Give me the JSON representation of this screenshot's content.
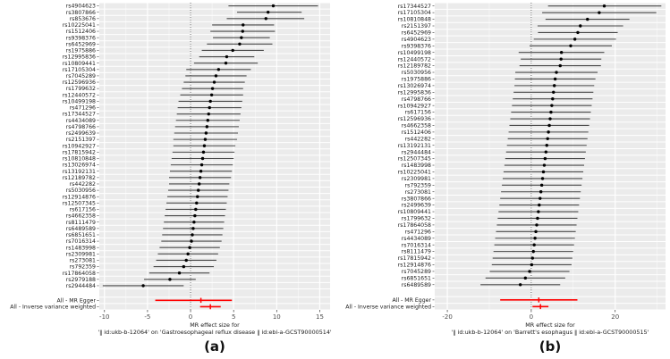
{
  "figure": {
    "caption_a": "(a)",
    "caption_b": "(b)",
    "colors": {
      "panel_bg": "#ebebeb",
      "grid_major": "#ffffff",
      "grid_minor": "#f7f7f7",
      "zero_line": "#222222",
      "ci_line": "#4a4a4a",
      "point": "#000000",
      "summary": "#ff0000",
      "tick": "#333333",
      "tick_label": "#4d4d4d",
      "axis_label": "#1a1a1a",
      "snp_label": "#1a1a1a"
    }
  },
  "chart_data": [
    {
      "type": "forest",
      "panel": "a",
      "xlabel_line1": "MR effect size for",
      "xlabel_line2": "'‖ id:ukb-b-12064' on 'Gastroesophageal reflux disease ‖ id:ebi-a-GCST90000514'",
      "xlim": [
        -10.6,
        16.2
      ],
      "xticks": [
        -10,
        -5,
        0,
        5,
        10,
        15
      ],
      "legend_position": "none",
      "grid": true,
      "rows": [
        {
          "label": "rs4904623",
          "est": 9.6,
          "lo": 4.4,
          "hi": 14.8
        },
        {
          "label": "rs3807866",
          "est": 9.0,
          "lo": 5.4,
          "hi": 12.9
        },
        {
          "label": "rs853676",
          "est": 8.75,
          "lo": 4.2,
          "hi": 13.2
        },
        {
          "label": "rs10225041",
          "est": 6.1,
          "lo": 2.5,
          "hi": 9.7
        },
        {
          "label": "rs1512406",
          "est": 6.05,
          "lo": 2.3,
          "hi": 9.8
        },
        {
          "label": "rs9398376",
          "est": 5.9,
          "lo": 2.6,
          "hi": 9.2
        },
        {
          "label": "rs6452969",
          "est": 5.7,
          "lo": 1.9,
          "hi": 9.5
        },
        {
          "label": "rs1975886",
          "est": 4.9,
          "lo": 1.3,
          "hi": 8.5
        },
        {
          "label": "rs12995836",
          "est": 4.2,
          "lo": 1.0,
          "hi": 7.4
        },
        {
          "label": "rs10809441",
          "est": 4.1,
          "lo": 0.4,
          "hi": 7.8
        },
        {
          "label": "rs17105304",
          "est": 3.25,
          "lo": -0.5,
          "hi": 7.0
        },
        {
          "label": "rs7045289",
          "est": 2.95,
          "lo": -0.6,
          "hi": 6.5
        },
        {
          "label": "rs12596936",
          "est": 2.75,
          "lo": -0.8,
          "hi": 6.3
        },
        {
          "label": "rs1799632",
          "est": 2.55,
          "lo": -1.0,
          "hi": 6.1
        },
        {
          "label": "rs12440572",
          "est": 2.45,
          "lo": -1.2,
          "hi": 6.1
        },
        {
          "label": "rs10499198",
          "est": 2.3,
          "lo": -1.4,
          "hi": 6.0
        },
        {
          "label": "rs471296",
          "est": 2.2,
          "lo": -1.5,
          "hi": 5.9
        },
        {
          "label": "rs17344527",
          "est": 2.1,
          "lo": -1.6,
          "hi": 5.8
        },
        {
          "label": "rs4434089",
          "est": 2.0,
          "lo": -1.7,
          "hi": 5.7
        },
        {
          "label": "rs4798766",
          "est": 1.9,
          "lo": -1.8,
          "hi": 5.6
        },
        {
          "label": "rs2499639",
          "est": 1.8,
          "lo": -1.9,
          "hi": 5.5
        },
        {
          "label": "rs2151397",
          "est": 1.7,
          "lo": -2.0,
          "hi": 5.4
        },
        {
          "label": "rs10942927",
          "est": 1.6,
          "lo": -2.0,
          "hi": 5.2
        },
        {
          "label": "rs17815942",
          "est": 1.5,
          "lo": -2.1,
          "hi": 5.1
        },
        {
          "label": "rs10810848",
          "est": 1.4,
          "lo": -2.2,
          "hi": 5.0
        },
        {
          "label": "rs13026974",
          "est": 1.3,
          "lo": -2.3,
          "hi": 4.9
        },
        {
          "label": "rs13192131",
          "est": 1.2,
          "lo": -2.4,
          "hi": 4.8
        },
        {
          "label": "rs12189782",
          "est": 1.1,
          "lo": -2.5,
          "hi": 4.7
        },
        {
          "label": "rs442282",
          "est": 1.0,
          "lo": -2.5,
          "hi": 4.5
        },
        {
          "label": "rs5030956",
          "est": 0.9,
          "lo": -2.6,
          "hi": 4.4
        },
        {
          "label": "rs12914876",
          "est": 0.8,
          "lo": -2.7,
          "hi": 4.3
        },
        {
          "label": "rs12507345",
          "est": 0.7,
          "lo": -2.8,
          "hi": 4.2
        },
        {
          "label": "rs617156",
          "est": 0.6,
          "lo": -2.9,
          "hi": 4.1
        },
        {
          "label": "rs4662358",
          "est": 0.5,
          "lo": -3.0,
          "hi": 4.0
        },
        {
          "label": "rs8111479",
          "est": 0.4,
          "lo": -3.1,
          "hi": 3.9
        },
        {
          "label": "rs6489589",
          "est": 0.3,
          "lo": -3.2,
          "hi": 3.8
        },
        {
          "label": "rs6851651",
          "est": 0.2,
          "lo": -3.3,
          "hi": 3.7
        },
        {
          "label": "rs7016314",
          "est": 0.1,
          "lo": -3.4,
          "hi": 3.6
        },
        {
          "label": "rs1483998",
          "est": -0.1,
          "lo": -3.6,
          "hi": 3.4
        },
        {
          "label": "rs2309981",
          "est": -0.3,
          "lo": -3.8,
          "hi": 3.2
        },
        {
          "label": "rs273081",
          "est": -0.5,
          "lo": -4.0,
          "hi": 3.0
        },
        {
          "label": "rs792359",
          "est": -0.8,
          "lo": -4.3,
          "hi": 2.7
        },
        {
          "label": "rs17864058",
          "est": -1.3,
          "lo": -4.8,
          "hi": 2.2
        },
        {
          "label": "rs2979188",
          "est": -2.4,
          "lo": -5.4,
          "hi": 0.6
        },
        {
          "label": "rs2944484",
          "est": -5.5,
          "lo": -10.2,
          "hi": -0.8
        }
      ],
      "summary_rows": [
        {
          "label": "All - MR Egger",
          "est": 1.2,
          "lo": -4.1,
          "hi": 4.8
        },
        {
          "label": "All - Inverse variance weighted",
          "est": 2.3,
          "lo": 1.1,
          "hi": 3.5
        }
      ]
    },
    {
      "type": "forest",
      "panel": "b",
      "xlabel_line1": "MR effect size for",
      "xlabel_line2": "'‖ id:ukb-b-12064' on 'Barrett's esophagus ‖ id:ebi-a-GCST90000515'",
      "xlim": [
        -23,
        32
      ],
      "xticks": [
        -20,
        0,
        20
      ],
      "legend_position": "none",
      "grid": true,
      "rows": [
        {
          "label": "rs17344527",
          "est": 17.4,
          "lo": 4.0,
          "hi": 31.0
        },
        {
          "label": "rs17105304",
          "est": 16.2,
          "lo": 2.6,
          "hi": 29.8
        },
        {
          "label": "rs10810848",
          "est": 13.4,
          "lo": 3.4,
          "hi": 23.4
        },
        {
          "label": "rs2151397",
          "est": 11.7,
          "lo": 1.5,
          "hi": 21.9
        },
        {
          "label": "rs6452969",
          "est": 11.1,
          "lo": 1.6,
          "hi": 20.6
        },
        {
          "label": "rs4904623",
          "est": 10.4,
          "lo": 0.6,
          "hi": 20.2
        },
        {
          "label": "rs9398376",
          "est": 9.4,
          "lo": -0.4,
          "hi": 19.2
        },
        {
          "label": "rs10499198",
          "est": 7.2,
          "lo": -3.0,
          "hi": 17.4
        },
        {
          "label": "rs12440572",
          "est": 7.1,
          "lo": -2.5,
          "hi": 16.7
        },
        {
          "label": "rs12189782",
          "est": 6.9,
          "lo": -2.8,
          "hi": 16.6
        },
        {
          "label": "rs5030956",
          "est": 6.0,
          "lo": -3.8,
          "hi": 15.8
        },
        {
          "label": "rs1975886",
          "est": 5.7,
          "lo": -3.9,
          "hi": 15.3
        },
        {
          "label": "rs13026974",
          "est": 5.5,
          "lo": -4.0,
          "hi": 15.0
        },
        {
          "label": "rs12995836",
          "est": 5.3,
          "lo": -4.2,
          "hi": 14.8
        },
        {
          "label": "rs4798766",
          "est": 5.1,
          "lo": -4.4,
          "hi": 14.6
        },
        {
          "label": "rs10942927",
          "est": 4.9,
          "lo": -4.6,
          "hi": 14.4
        },
        {
          "label": "rs617156",
          "est": 4.7,
          "lo": -4.8,
          "hi": 14.2
        },
        {
          "label": "rs12596936",
          "est": 4.5,
          "lo": -5.0,
          "hi": 14.0
        },
        {
          "label": "rs4662358",
          "est": 4.3,
          "lo": -5.2,
          "hi": 13.8
        },
        {
          "label": "rs1512406",
          "est": 4.1,
          "lo": -5.4,
          "hi": 13.6
        },
        {
          "label": "rs442282",
          "est": 3.9,
          "lo": -5.6,
          "hi": 13.4
        },
        {
          "label": "rs13192131",
          "est": 3.7,
          "lo": -5.8,
          "hi": 13.2
        },
        {
          "label": "rs2944484",
          "est": 3.5,
          "lo": -6.0,
          "hi": 13.0
        },
        {
          "label": "rs12507345",
          "est": 3.3,
          "lo": -6.2,
          "hi": 12.8
        },
        {
          "label": "rs1483998",
          "est": 3.1,
          "lo": -6.4,
          "hi": 12.6
        },
        {
          "label": "rs10225041",
          "est": 2.9,
          "lo": -6.6,
          "hi": 12.4
        },
        {
          "label": "rs2309981",
          "est": 2.7,
          "lo": -6.8,
          "hi": 12.2
        },
        {
          "label": "rs792359",
          "est": 2.5,
          "lo": -7.0,
          "hi": 12.0
        },
        {
          "label": "rs273081",
          "est": 2.3,
          "lo": -7.2,
          "hi": 11.8
        },
        {
          "label": "rs3807866",
          "est": 2.1,
          "lo": -7.4,
          "hi": 11.6
        },
        {
          "label": "rs2499639",
          "est": 1.9,
          "lo": -7.6,
          "hi": 11.4
        },
        {
          "label": "rs10809441",
          "est": 1.7,
          "lo": -7.8,
          "hi": 11.2
        },
        {
          "label": "rs1799632",
          "est": 1.5,
          "lo": -8.0,
          "hi": 11.0
        },
        {
          "label": "rs17864058",
          "est": 1.3,
          "lo": -8.2,
          "hi": 10.8
        },
        {
          "label": "rs471296",
          "est": 1.1,
          "lo": -8.4,
          "hi": 10.6
        },
        {
          "label": "rs4434089",
          "est": 0.9,
          "lo": -8.6,
          "hi": 10.4
        },
        {
          "label": "rs7016314",
          "est": 0.7,
          "lo": -8.8,
          "hi": 10.2
        },
        {
          "label": "rs8111479",
          "est": 0.5,
          "lo": -9.0,
          "hi": 10.0
        },
        {
          "label": "rs17815942",
          "est": 0.3,
          "lo": -9.2,
          "hi": 9.8
        },
        {
          "label": "rs12914876",
          "est": 0.1,
          "lo": -9.4,
          "hi": 9.6
        },
        {
          "label": "rs7045289",
          "est": -0.4,
          "lo": -9.9,
          "hi": 9.1
        },
        {
          "label": "rs6851651",
          "est": -1.4,
          "lo": -10.9,
          "hi": 8.1
        },
        {
          "label": "rs6489589",
          "est": -2.6,
          "lo": -12.1,
          "hi": 6.9
        }
      ],
      "summary_rows": [
        {
          "label": "All - MR Egger",
          "est": 1.8,
          "lo": -7.4,
          "hi": 11.0
        },
        {
          "label": "All - Inverse variance weighted",
          "est": 2.2,
          "lo": 0.3,
          "hi": 4.1
        }
      ]
    }
  ]
}
